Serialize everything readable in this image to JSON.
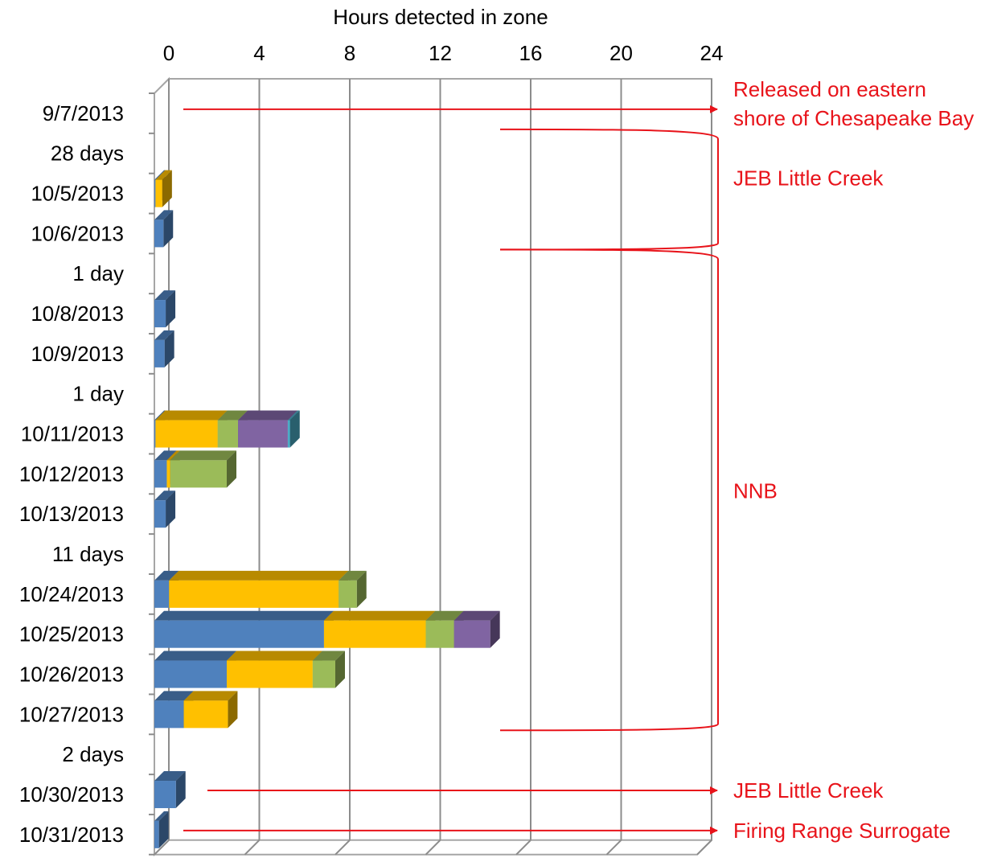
{
  "chart_data": {
    "type": "bar",
    "orientation": "horizontal",
    "stacked": true,
    "style": "3d",
    "title": "",
    "xlabel": "Hours detected in zone",
    "ylabel": "",
    "xlim": [
      0,
      24
    ],
    "x_ticks": [
      "0",
      "4",
      "8",
      "12",
      "16",
      "20",
      "24"
    ],
    "x_tick_values": [
      0,
      4,
      8,
      12,
      16,
      20,
      24
    ],
    "grid": true,
    "legend": "none",
    "categories": [
      "9/7/2013",
      "28 days",
      "10/5/2013",
      "10/6/2013",
      "1 day",
      "10/8/2013",
      "10/9/2013",
      "1 day",
      "10/11/2013",
      "10/12/2013",
      "10/13/2013",
      "11 days",
      "10/24/2013",
      "10/25/2013",
      "10/26/2013",
      "10/27/2013",
      "2 days",
      "10/30/2013",
      "10/31/2013"
    ],
    "series": [
      {
        "color": "#4f81bd",
        "values": [
          0,
          0,
          0.05,
          0.4,
          0,
          0.5,
          0.45,
          0,
          0.05,
          0.55,
          0.5,
          0,
          0.65,
          7.5,
          3.2,
          1.3,
          0,
          0.95,
          0.2
        ]
      },
      {
        "color": "#ffc000",
        "values": [
          0,
          0,
          0.3,
          0,
          0,
          0,
          0,
          0,
          2.75,
          0.15,
          0,
          0,
          7.5,
          4.5,
          3.8,
          1.95,
          0,
          0,
          0
        ]
      },
      {
        "color": "#9bbb59",
        "values": [
          0,
          0,
          0,
          0,
          0,
          0,
          0,
          0,
          0.9,
          2.5,
          0,
          0,
          0.8,
          1.25,
          1.0,
          0,
          0,
          0,
          0
        ]
      },
      {
        "color": "#8064a2",
        "values": [
          0,
          0,
          0,
          0,
          0,
          0,
          0,
          0,
          2.2,
          0,
          0,
          0,
          0,
          1.6,
          0,
          0,
          0,
          0,
          0
        ]
      },
      {
        "color": "#4bacc6",
        "values": [
          0,
          0,
          0,
          0,
          0,
          0,
          0,
          0,
          0.1,
          0,
          0,
          0,
          0,
          0,
          0,
          0,
          0,
          0,
          0
        ]
      }
    ],
    "annotations": [
      {
        "type": "arrow",
        "row": 0,
        "lines": [
          "Released on eastern",
          "shore of Chesapeake Bay"
        ]
      },
      {
        "type": "bracket",
        "from_row": 1,
        "to_row": 3,
        "lines": [
          "JEB Little Creek"
        ]
      },
      {
        "type": "bracket",
        "from_row": 4,
        "to_row": 15,
        "lines": [
          "NNB"
        ]
      },
      {
        "type": "arrow",
        "row": 17,
        "lines": [
          "JEB Little Creek"
        ]
      },
      {
        "type": "arrow",
        "row": 18,
        "lines": [
          "Firing Range Surrogate"
        ]
      }
    ],
    "annotation_color": "#e8131a"
  }
}
